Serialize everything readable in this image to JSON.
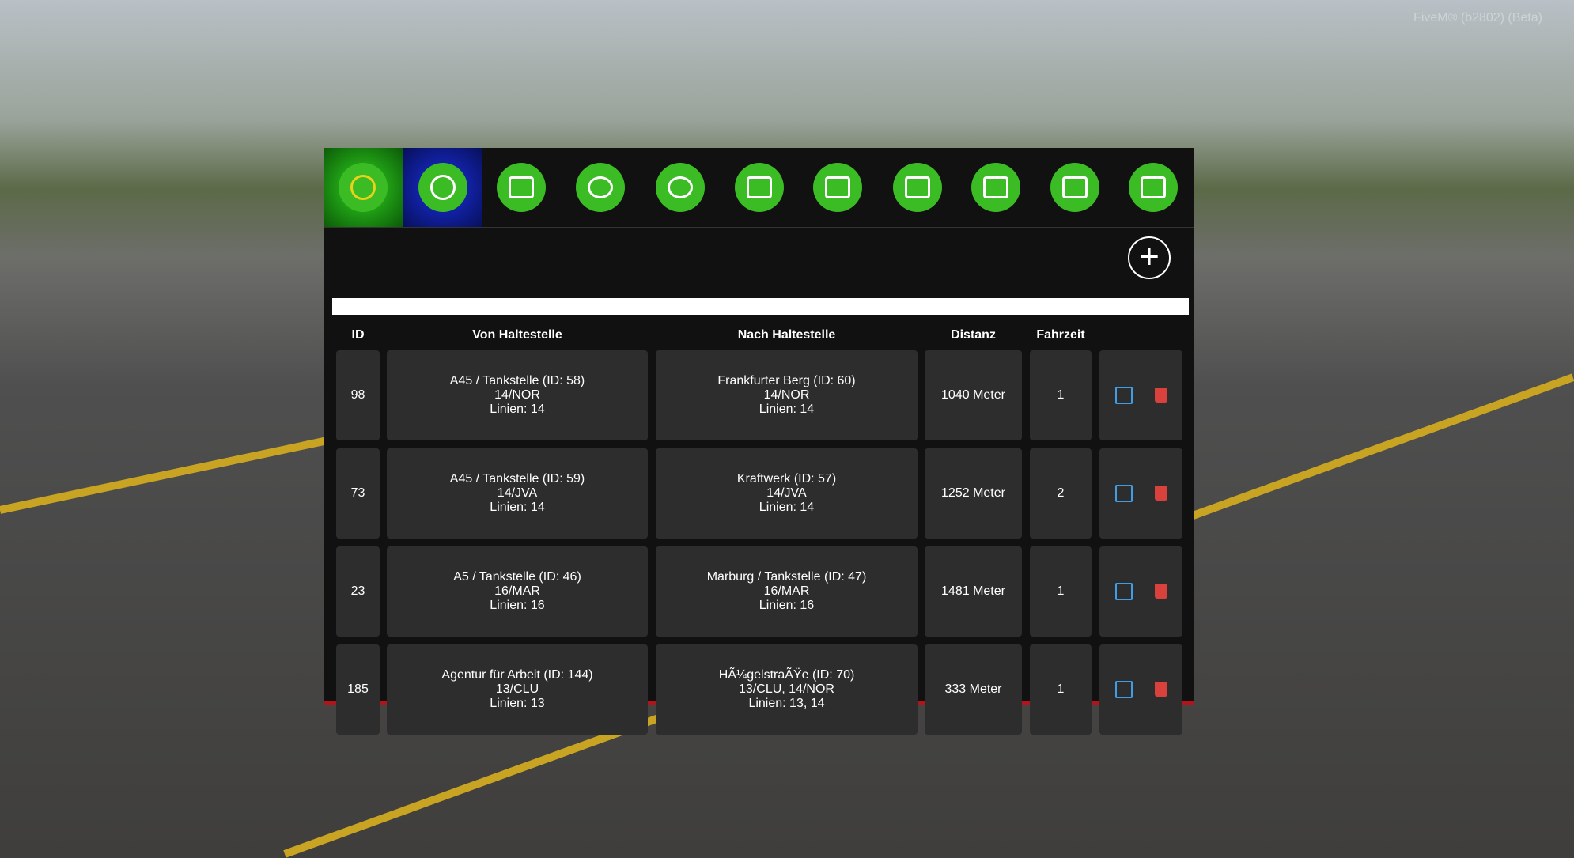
{
  "watermark": "FiveM® (b2802) (Beta)",
  "table": {
    "headers": [
      "ID",
      "Von Haltestelle",
      "Nach Haltestelle",
      "Distanz",
      "Fahrzeit"
    ],
    "rows": [
      {
        "id": "98",
        "from": [
          "A45 / Tankstelle (ID: 58)",
          "14/NOR",
          "Linien: 14"
        ],
        "to": [
          "Frankfurter Berg (ID: 60)",
          "14/NOR",
          "Linien: 14"
        ],
        "distance": "1040 Meter",
        "time": "1"
      },
      {
        "id": "73",
        "from": [
          "A45 / Tankstelle (ID: 59)",
          "14/JVA",
          "Linien: 14"
        ],
        "to": [
          "Kraftwerk (ID: 57)",
          "14/JVA",
          "Linien: 14"
        ],
        "distance": "1252 Meter",
        "time": "2"
      },
      {
        "id": "23",
        "from": [
          "A5 / Tankstelle (ID: 46)",
          "16/MAR",
          "Linien: 16"
        ],
        "to": [
          "Marburg / Tankstelle (ID: 47)",
          "16/MAR",
          "Linien: 16"
        ],
        "distance": "1481 Meter",
        "time": "1"
      },
      {
        "id": "185",
        "from": [
          "Agentur für Arbeit (ID: 144)",
          "13/CLU",
          "Linien: 13"
        ],
        "to": [
          "HÃ¼gelstraÃŸe (ID: 70)",
          "13/CLU, 14/NOR",
          "Linien: 13, 14"
        ],
        "distance": "333 Meter",
        "time": "1"
      }
    ]
  }
}
